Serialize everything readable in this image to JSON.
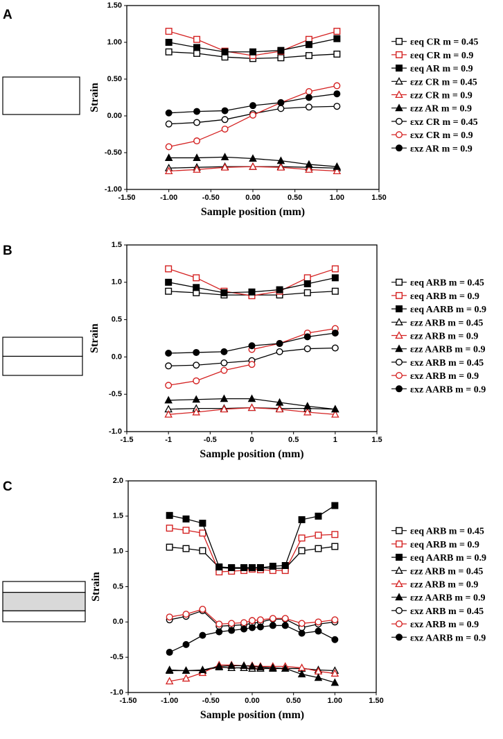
{
  "figure": {
    "panels": [
      {
        "letter": "A",
        "schematic_name": "single-layer-specimen",
        "chart_ref": 0
      },
      {
        "letter": "B",
        "schematic_name": "two-layer-specimen",
        "chart_ref": 1
      },
      {
        "letter": "C",
        "schematic_name": "three-layer-specimen",
        "chart_ref": 2
      }
    ],
    "colors": {
      "black": "#000000",
      "red": "#d42020",
      "grey_layer": "#d9d9d9"
    }
  },
  "chart_data": [
    {
      "type": "line",
      "panel": "A",
      "xlabel": "Sample position (mm)",
      "ylabel": "Strain",
      "xlim": [
        -1.5,
        1.5
      ],
      "ylim": [
        -1.0,
        1.5
      ],
      "xticks": [
        "-1.50",
        "-1.00",
        "-0.50",
        "0.00",
        "0.50",
        "1.00",
        "1.50"
      ],
      "xtick_values": [
        -1.5,
        -1.0,
        -0.5,
        0.0,
        0.5,
        1.0,
        1.5
      ],
      "yticks": [
        "-1.00",
        "-0.50",
        "0.00",
        "0.50",
        "1.00",
        "1.50"
      ],
      "ytick_values": [
        -1.0,
        -0.5,
        0.0,
        0.5,
        1.0,
        1.5
      ],
      "legend_position": "right",
      "series": [
        {
          "sym": "εeq",
          "proc": "CR",
          "m": "m = 0.45",
          "color": "#000000",
          "marker": "square-open",
          "x": [
            -1.0,
            -0.667,
            -0.333,
            0.0,
            0.333,
            0.667,
            1.0
          ],
          "values": [
            0.87,
            0.85,
            0.8,
            0.78,
            0.79,
            0.82,
            0.84
          ]
        },
        {
          "sym": "εeq",
          "proc": "CR",
          "m": "m = 0.9",
          "color": "#d42020",
          "marker": "square-open",
          "x": [
            -1.0,
            -0.667,
            -0.333,
            0.0,
            0.333,
            0.667,
            1.0
          ],
          "values": [
            1.15,
            1.04,
            0.88,
            0.82,
            0.88,
            1.04,
            1.15
          ]
        },
        {
          "sym": "εeq",
          "proc": "AR",
          "m": "m = 0.9",
          "color": "#000000",
          "marker": "square-filled",
          "x": [
            -1.0,
            -0.667,
            -0.333,
            0.0,
            0.333,
            0.667,
            1.0
          ],
          "values": [
            1.0,
            0.93,
            0.87,
            0.87,
            0.89,
            0.97,
            1.05
          ]
        },
        {
          "sym": "εzz",
          "proc": "CR",
          "m": "m = 0.45",
          "color": "#000000",
          "marker": "triangle-open",
          "x": [
            -1.0,
            -0.667,
            -0.333,
            0.0,
            0.333,
            0.667,
            1.0
          ],
          "values": [
            -0.71,
            -0.7,
            -0.69,
            -0.69,
            -0.69,
            -0.7,
            -0.71
          ]
        },
        {
          "sym": "εzz",
          "proc": "CR",
          "m": "m = 0.9",
          "color": "#d42020",
          "marker": "triangle-open",
          "x": [
            -1.0,
            -0.667,
            -0.333,
            0.0,
            0.333,
            0.667,
            1.0
          ],
          "values": [
            -0.75,
            -0.73,
            -0.7,
            -0.69,
            -0.7,
            -0.73,
            -0.75
          ]
        },
        {
          "sym": "εzz",
          "proc": "AR",
          "m": "m = 0.9",
          "color": "#000000",
          "marker": "triangle-filled",
          "x": [
            -1.0,
            -0.667,
            -0.333,
            0.0,
            0.333,
            0.667,
            1.0
          ],
          "values": [
            -0.57,
            -0.57,
            -0.56,
            -0.58,
            -0.61,
            -0.66,
            -0.69
          ]
        },
        {
          "sym": "εxz",
          "proc": "CR",
          "m": "m = 0.45",
          "color": "#000000",
          "marker": "circle-open",
          "x": [
            -1.0,
            -0.667,
            -0.333,
            0.0,
            0.333,
            0.667,
            1.0
          ],
          "values": [
            -0.11,
            -0.09,
            -0.05,
            0.03,
            0.1,
            0.12,
            0.13
          ]
        },
        {
          "sym": "εxz",
          "proc": "CR",
          "m": "m = 0.9",
          "color": "#d42020",
          "marker": "circle-open",
          "x": [
            -1.0,
            -0.667,
            -0.333,
            0.0,
            0.333,
            0.667,
            1.0
          ],
          "values": [
            -0.42,
            -0.34,
            -0.18,
            0.01,
            0.18,
            0.33,
            0.41
          ]
        },
        {
          "sym": "εxz",
          "proc": "AR",
          "m": "m = 0.9",
          "color": "#000000",
          "marker": "circle-filled",
          "x": [
            -1.0,
            -0.667,
            -0.333,
            0.0,
            0.333,
            0.667,
            1.0
          ],
          "values": [
            0.04,
            0.06,
            0.07,
            0.14,
            0.18,
            0.25,
            0.3
          ]
        }
      ]
    },
    {
      "type": "line",
      "panel": "B",
      "xlabel": "Sample position (mm)",
      "ylabel": "Strain",
      "xlim": [
        -1.5,
        1.5
      ],
      "ylim": [
        -1.0,
        1.5
      ],
      "xticks": [
        "-1.5",
        "-1",
        "-0.5",
        "0",
        "0.5",
        "1",
        "1.5"
      ],
      "xtick_values": [
        -1.5,
        -1.0,
        -0.5,
        0.0,
        0.5,
        1.0,
        1.5
      ],
      "yticks": [
        "-1.0",
        "-0.5",
        "0.0",
        "0.5",
        "1.0",
        "1.5"
      ],
      "ytick_values": [
        -1.0,
        -0.5,
        0.0,
        0.5,
        1.0,
        1.5
      ],
      "legend_position": "right",
      "series": [
        {
          "sym": "εeq",
          "proc": "ARB",
          "m": "m = 0.45",
          "color": "#000000",
          "marker": "square-open",
          "x": [
            -1.0,
            -0.667,
            -0.333,
            0.0,
            0.333,
            0.667,
            1.0
          ],
          "values": [
            0.88,
            0.86,
            0.83,
            0.83,
            0.83,
            0.86,
            0.88
          ]
        },
        {
          "sym": "εeq",
          "proc": "ARB",
          "m": "m = 0.9",
          "color": "#d42020",
          "marker": "square-open",
          "x": [
            -1.0,
            -0.667,
            -0.333,
            0.0,
            0.333,
            0.667,
            1.0
          ],
          "values": [
            1.18,
            1.06,
            0.88,
            0.82,
            0.88,
            1.06,
            1.18
          ]
        },
        {
          "sym": "εeq",
          "proc": "AARB",
          "m": "m = 0.9",
          "color": "#000000",
          "marker": "square-filled",
          "x": [
            -1.0,
            -0.667,
            -0.333,
            0.0,
            0.333,
            0.667,
            1.0
          ],
          "values": [
            1.0,
            0.93,
            0.86,
            0.87,
            0.9,
            0.98,
            1.06
          ]
        },
        {
          "sym": "εzz",
          "proc": "ARB",
          "m": "m = 0.45",
          "color": "#000000",
          "marker": "triangle-open",
          "x": [
            -1.0,
            -0.667,
            -0.333,
            0.0,
            0.333,
            0.667,
            1.0
          ],
          "values": [
            -0.7,
            -0.69,
            -0.69,
            -0.68,
            -0.69,
            -0.69,
            -0.7
          ]
        },
        {
          "sym": "εzz",
          "proc": "ARB",
          "m": "m = 0.9",
          "color": "#d42020",
          "marker": "triangle-open",
          "x": [
            -1.0,
            -0.667,
            -0.333,
            0.0,
            0.333,
            0.667,
            1.0
          ],
          "values": [
            -0.77,
            -0.74,
            -0.7,
            -0.68,
            -0.7,
            -0.74,
            -0.77
          ]
        },
        {
          "sym": "εzz",
          "proc": "AARB",
          "m": "m = 0.9",
          "color": "#000000",
          "marker": "triangle-filled",
          "x": [
            -1.0,
            -0.667,
            -0.333,
            0.0,
            0.333,
            0.667,
            1.0
          ],
          "values": [
            -0.58,
            -0.57,
            -0.56,
            -0.56,
            -0.61,
            -0.66,
            -0.7
          ]
        },
        {
          "sym": "εxz",
          "proc": "ARB",
          "m": "m = 0.45",
          "color": "#000000",
          "marker": "circle-open",
          "x": [
            -1.0,
            -0.667,
            -0.333,
            0.0,
            0.333,
            0.667,
            1.0
          ],
          "values": [
            -0.12,
            -0.11,
            -0.08,
            -0.05,
            0.07,
            0.11,
            0.12
          ]
        },
        {
          "sym": "εxz",
          "proc": "ARB",
          "m": "m = 0.9",
          "color": "#d42020",
          "marker": "circle-open",
          "x": [
            -1.0,
            -0.667,
            -0.333,
            0.0
          ],
          "values": [
            -0.38,
            -0.32,
            -0.18,
            -0.1
          ],
          "x2": [
            0.0,
            0.333,
            0.667,
            1.0
          ],
          "values2": [
            0.1,
            0.18,
            0.32,
            0.38
          ]
        },
        {
          "sym": "εxz",
          "proc": "AARB",
          "m": "m = 0.9",
          "color": "#000000",
          "marker": "circle-filled",
          "x": [
            -1.0,
            -0.667,
            -0.333,
            0.0,
            0.333,
            0.667,
            1.0
          ],
          "values": [
            0.05,
            0.06,
            0.07,
            0.15,
            0.18,
            0.27,
            0.32
          ]
        }
      ]
    },
    {
      "type": "line",
      "panel": "C",
      "xlabel": "Sample position (mm)",
      "ylabel": "Strain",
      "xlim": [
        -1.5,
        1.5
      ],
      "ylim": [
        -1.0,
        2.0
      ],
      "xticks": [
        "-1.50",
        "-1.00",
        "-0.50",
        "0.00",
        "0.50",
        "1.00",
        "1.50"
      ],
      "xtick_values": [
        -1.5,
        -1.0,
        -0.5,
        0.0,
        0.5,
        1.0,
        1.5
      ],
      "yticks": [
        "-1.0",
        "-0.5",
        "0.0",
        "0.5",
        "1.0",
        "1.5",
        "2.0"
      ],
      "ytick_values": [
        -1.0,
        -0.5,
        0.0,
        0.5,
        1.0,
        1.5,
        2.0
      ],
      "legend_position": "right",
      "series": [
        {
          "sym": "εeq",
          "proc": "ARB",
          "m": "m = 0.45",
          "color": "#000000",
          "marker": "square-open",
          "x": [
            -1.0,
            -0.8,
            -0.6,
            -0.4,
            -0.25,
            -0.1,
            0.0,
            0.1,
            0.25,
            0.4,
            0.6,
            0.8,
            1.0
          ],
          "values": [
            1.06,
            1.04,
            1.01,
            0.77,
            0.76,
            0.76,
            0.76,
            0.77,
            0.76,
            0.76,
            1.01,
            1.04,
            1.07
          ]
        },
        {
          "sym": "εeq",
          "proc": "ARB",
          "m": "m = 0.9",
          "color": "#d42020",
          "marker": "square-open",
          "x": [
            -1.0,
            -0.8,
            -0.6,
            -0.4,
            -0.25,
            -0.1,
            0.0,
            0.1,
            0.25,
            0.4,
            0.6,
            0.8,
            1.0
          ],
          "values": [
            1.33,
            1.3,
            1.26,
            0.71,
            0.72,
            0.73,
            0.75,
            0.74,
            0.73,
            0.73,
            1.19,
            1.23,
            1.24
          ]
        },
        {
          "sym": "εeq",
          "proc": "AARB",
          "m": "m = 0.9",
          "color": "#000000",
          "marker": "square-filled",
          "x": [
            -1.0,
            -0.8,
            -0.6,
            -0.4,
            -0.25,
            -0.1,
            0.0,
            0.1,
            0.25,
            0.4,
            0.6,
            0.8,
            1.0
          ],
          "values": [
            1.51,
            1.46,
            1.4,
            0.78,
            0.77,
            0.77,
            0.77,
            0.77,
            0.79,
            0.8,
            1.45,
            1.5,
            1.65
          ]
        },
        {
          "sym": "εzz",
          "proc": "ARB",
          "m": "m = 0.45",
          "color": "#000000",
          "marker": "triangle-open",
          "x": [
            -1.0,
            -0.8,
            -0.6,
            -0.4,
            -0.25,
            -0.1,
            0.0,
            0.1,
            0.25,
            0.4,
            0.6,
            0.8,
            1.0
          ],
          "values": [
            -0.69,
            -0.69,
            -0.69,
            -0.64,
            -0.65,
            -0.65,
            -0.66,
            -0.66,
            -0.66,
            -0.66,
            -0.66,
            -0.68,
            -0.69
          ]
        },
        {
          "sym": "εzz",
          "proc": "ARB",
          "m": "m = 0.9",
          "color": "#d42020",
          "marker": "triangle-open",
          "x": [
            -1.0,
            -0.8,
            -0.6,
            -0.4,
            -0.25,
            -0.1,
            0.0,
            0.1,
            0.25,
            0.4,
            0.6,
            0.8,
            1.0
          ],
          "values": [
            -0.84,
            -0.8,
            -0.72,
            -0.61,
            -0.61,
            -0.62,
            -0.62,
            -0.63,
            -0.63,
            -0.63,
            -0.65,
            -0.7,
            -0.73
          ]
        },
        {
          "sym": "εzz",
          "proc": "AARB",
          "m": "m = 0.9",
          "color": "#000000",
          "marker": "triangle-filled",
          "x": [
            -1.0,
            -0.8,
            -0.6,
            -0.4,
            -0.25,
            -0.1,
            0.0,
            0.1,
            0.25,
            0.4,
            0.6,
            0.8,
            1.0
          ],
          "values": [
            -0.68,
            -0.69,
            -0.68,
            -0.63,
            -0.62,
            -0.62,
            -0.63,
            -0.64,
            -0.65,
            -0.66,
            -0.74,
            -0.79,
            -0.86
          ]
        },
        {
          "sym": "εxz",
          "proc": "ARB",
          "m": "m = 0.45",
          "color": "#000000",
          "marker": "circle-open",
          "x": [
            -1.0,
            -0.8,
            -0.6,
            -0.4,
            -0.25,
            -0.1,
            0.0,
            0.1,
            0.25,
            0.4,
            0.6,
            0.8,
            1.0
          ],
          "values": [
            0.03,
            0.08,
            0.16,
            -0.06,
            -0.05,
            -0.04,
            -0.02,
            0.0,
            0.04,
            0.04,
            -0.08,
            -0.03,
            0.0
          ]
        },
        {
          "sym": "εxz",
          "proc": "ARB",
          "m": "m = 0.9",
          "color": "#d42020",
          "marker": "circle-open",
          "x": [
            -1.0,
            -0.8,
            -0.6,
            -0.4,
            -0.25,
            -0.1,
            0.0,
            0.1,
            0.25,
            0.4,
            0.6,
            0.8,
            1.0
          ],
          "values": [
            0.07,
            0.11,
            0.18,
            -0.03,
            -0.02,
            -0.01,
            0.02,
            0.03,
            0.05,
            0.05,
            -0.02,
            0.0,
            0.03
          ]
        },
        {
          "sym": "εxz",
          "proc": "AARB",
          "m": "m = 0.9",
          "color": "#000000",
          "marker": "circle-filled",
          "x": [
            -1.0,
            -0.8,
            -0.6,
            -0.4,
            -0.25,
            -0.1,
            0.0,
            0.1,
            0.25,
            0.4,
            0.6,
            0.8,
            1.0
          ],
          "values": [
            -0.43,
            -0.32,
            -0.19,
            -0.14,
            -0.12,
            -0.1,
            -0.08,
            -0.07,
            -0.05,
            -0.05,
            -0.16,
            -0.13,
            -0.25
          ]
        }
      ]
    }
  ]
}
